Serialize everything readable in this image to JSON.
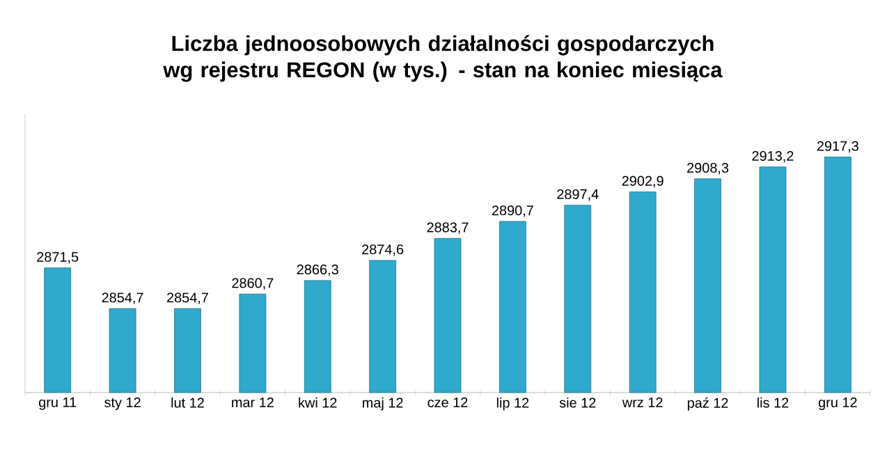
{
  "chart_data": {
    "type": "bar",
    "title": "Liczba jednoosobowych działalności gospodarczych wg rejestru REGON (w tys.) - stan na koniec miesiąca",
    "categories": [
      "gru 11",
      "sty 12",
      "lut 12",
      "mar 12",
      "kwi 12",
      "maj 12",
      "cze 12",
      "lip 12",
      "sie 12",
      "wrz 12",
      "paź 12",
      "lis 12",
      "gru 12"
    ],
    "values": [
      2871.5,
      2854.7,
      2854.7,
      2860.7,
      2866.3,
      2874.6,
      2883.7,
      2890.7,
      2897.4,
      2902.9,
      2908.3,
      2913.2,
      2917.3
    ],
    "value_labels": [
      "2871,5",
      "2854,7",
      "2854,7",
      "2860,7",
      "2866,3",
      "2874,6",
      "2883,7",
      "2890,7",
      "2897,4",
      "2902,9",
      "2908,3",
      "2913,2",
      "2917,3"
    ],
    "color": "#2fa9cc",
    "ylim": [
      2820,
      2935
    ]
  }
}
